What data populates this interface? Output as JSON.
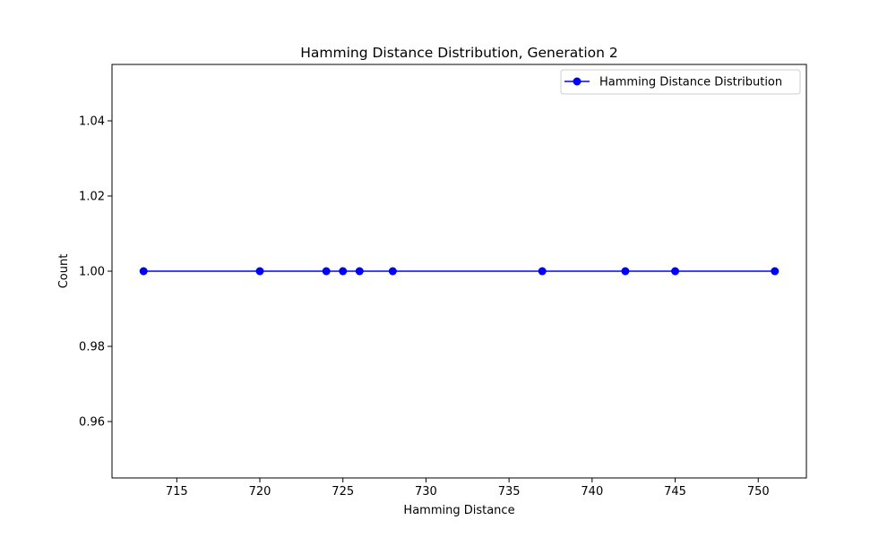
{
  "chart_data": {
    "type": "line",
    "title": "Hamming Distance Distribution, Generation 2",
    "xlabel": "Hamming Distance",
    "ylabel": "Count",
    "xlim": [
      711.1,
      752.9
    ],
    "ylim": [
      0.945,
      1.055
    ],
    "x_ticks": [
      715,
      720,
      725,
      730,
      735,
      740,
      745,
      750
    ],
    "y_ticks": [
      0.96,
      0.98,
      1.0,
      1.02,
      1.04
    ],
    "x_tick_labels": [
      "715",
      "720",
      "725",
      "730",
      "735",
      "740",
      "745",
      "750"
    ],
    "y_tick_labels": [
      "0.96",
      "0.98",
      "1.00",
      "1.02",
      "1.04"
    ],
    "grid": false,
    "legend_position": "upper right",
    "series": [
      {
        "name": "Hamming Distance Distribution",
        "color": "#0000ff",
        "marker": "circle",
        "x": [
          713,
          720,
          724,
          725,
          726,
          728,
          737,
          742,
          745,
          751
        ],
        "y": [
          1,
          1,
          1,
          1,
          1,
          1,
          1,
          1,
          1,
          1
        ]
      }
    ]
  }
}
